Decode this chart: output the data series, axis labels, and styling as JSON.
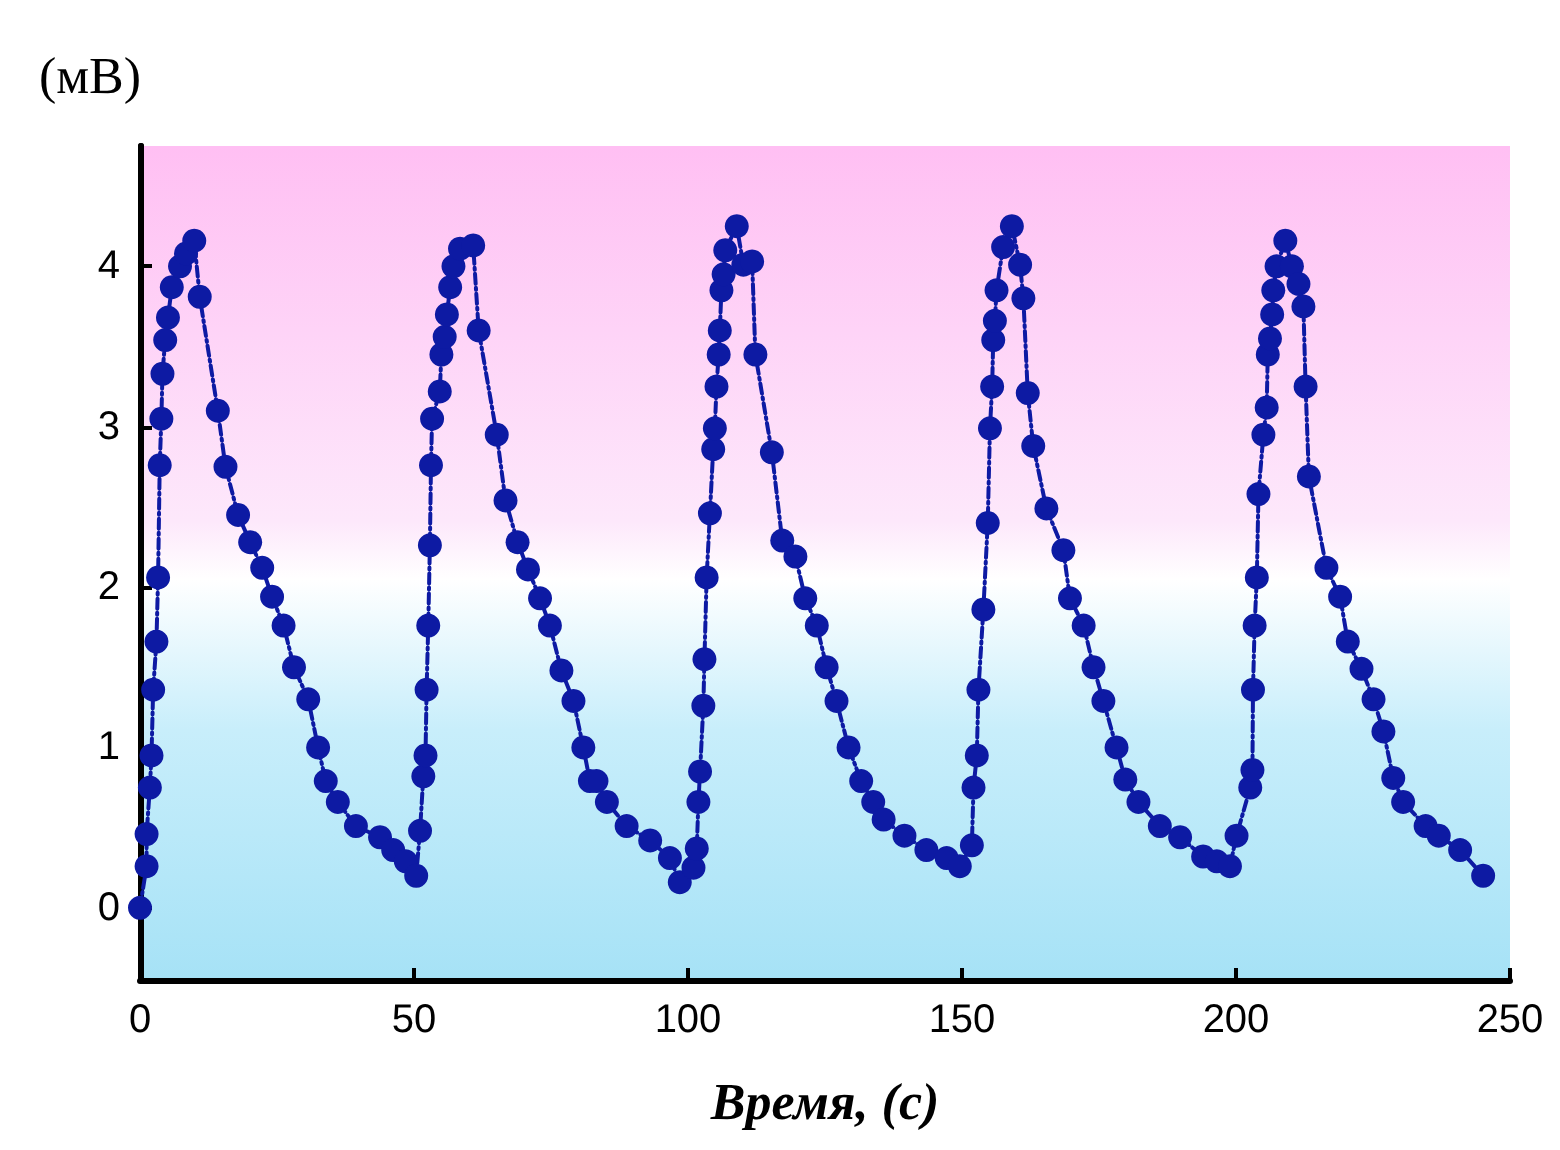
{
  "chart_data": {
    "type": "line",
    "xlabel": "Время, (с)",
    "ylabel": "(мВ)",
    "xlim": [
      0,
      250
    ],
    "ylim": [
      -0.45,
      4.75
    ],
    "xticks": [
      0,
      50,
      100,
      150,
      200,
      250
    ],
    "yticks": [
      0,
      1,
      2,
      3,
      4
    ],
    "grid": false,
    "marker": "circle",
    "line_style": "dashed",
    "series": [
      {
        "color": "#0d1aa3",
        "x": [
          0,
          1.2,
          1.2,
          1.8,
          2.1,
          2.4,
          3.0,
          3.3,
          3.6,
          3.9,
          4.1,
          4.6,
          5.1,
          5.8,
          7.3,
          8.4,
          9.9,
          10.9,
          14.2,
          15.6,
          17.9,
          20.1,
          22.3,
          24.1,
          26.2,
          28.1,
          30.7,
          32.5,
          33.9,
          36.1,
          39.4,
          43.8,
          46.2,
          48.5,
          50.4,
          51.1,
          51.7,
          52.1,
          52.3,
          52.6,
          52.9,
          53.1,
          53.3,
          54.7,
          55.0,
          55.6,
          56.0,
          56.6,
          57.2,
          58.4,
          60.8,
          61.8,
          65.1,
          66.7,
          68.9,
          70.8,
          73.0,
          74.8,
          76.9,
          79.1,
          80.9,
          82.1,
          83.3,
          85.2,
          88.8,
          93.1,
          96.7,
          98.5,
          101.0,
          101.6,
          101.9,
          102.2,
          102.8,
          103.0,
          103.4,
          104.0,
          104.6,
          104.9,
          105.2,
          105.6,
          105.8,
          106.1,
          106.5,
          106.8,
          108.9,
          110.1,
          111.7,
          112.3,
          115.3,
          117.2,
          119.6,
          121.4,
          123.5,
          125.3,
          127.1,
          129.3,
          131.6,
          133.8,
          135.7,
          139.5,
          143.5,
          147.2,
          149.6,
          151.8,
          152.1,
          152.7,
          153.0,
          153.9,
          154.7,
          155.1,
          155.5,
          155.7,
          156.0,
          156.3,
          157.5,
          159.1,
          160.6,
          161.2,
          162.0,
          163.0,
          165.4,
          168.5,
          169.7,
          172.2,
          174.0,
          175.8,
          178.2,
          179.8,
          182.2,
          186.1,
          189.8,
          194.0,
          196.5,
          198.9,
          200.1,
          202.6,
          203.0,
          203.1,
          203.4,
          203.8,
          204.1,
          205.0,
          205.6,
          205.8,
          206.2,
          206.6,
          206.8,
          207.4,
          209.0,
          210.2,
          211.4,
          212.3,
          212.7,
          213.3,
          216.5,
          219.0,
          220.4,
          222.9,
          225.1,
          226.9,
          228.7,
          230.5,
          234.6,
          237.0,
          240.9,
          245.1
        ],
        "values": [
          0,
          0.26,
          0.46,
          0.75,
          0.95,
          1.36,
          1.66,
          2.06,
          2.76,
          3.05,
          3.33,
          3.54,
          3.68,
          3.87,
          4.0,
          4.08,
          4.16,
          3.81,
          3.1,
          2.75,
          2.45,
          2.28,
          2.12,
          1.94,
          1.76,
          1.5,
          1.3,
          1.0,
          0.79,
          0.66,
          0.51,
          0.44,
          0.36,
          0.29,
          0.2,
          0.48,
          0.82,
          0.95,
          1.36,
          1.76,
          2.26,
          2.76,
          3.05,
          3.22,
          3.45,
          3.56,
          3.7,
          3.87,
          4.0,
          4.11,
          4.13,
          3.6,
          2.95,
          2.54,
          2.28,
          2.11,
          1.93,
          1.76,
          1.48,
          1.29,
          1.0,
          0.79,
          0.79,
          0.66,
          0.51,
          0.42,
          0.31,
          0.16,
          0.25,
          0.37,
          0.66,
          0.85,
          1.26,
          1.55,
          2.06,
          2.46,
          2.86,
          2.99,
          3.25,
          3.45,
          3.6,
          3.85,
          3.95,
          4.1,
          4.25,
          4.01,
          4.03,
          3.45,
          2.84,
          2.29,
          2.19,
          1.93,
          1.76,
          1.5,
          1.29,
          1.0,
          0.79,
          0.66,
          0.55,
          0.45,
          0.36,
          0.31,
          0.26,
          0.39,
          0.75,
          0.95,
          1.36,
          1.86,
          2.4,
          2.99,
          3.25,
          3.54,
          3.66,
          3.85,
          4.12,
          4.25,
          4.01,
          3.8,
          3.21,
          2.88,
          2.49,
          2.23,
          1.93,
          1.76,
          1.5,
          1.29,
          1.0,
          0.8,
          0.66,
          0.51,
          0.44,
          0.32,
          0.29,
          0.26,
          0.45,
          0.75,
          0.86,
          1.36,
          1.76,
          2.06,
          2.58,
          2.95,
          3.12,
          3.45,
          3.55,
          3.7,
          3.85,
          4.0,
          4.16,
          4.0,
          3.89,
          3.75,
          3.25,
          2.69,
          2.12,
          1.94,
          1.66,
          1.49,
          1.3,
          1.1,
          0.81,
          0.66,
          0.51,
          0.45,
          0.36,
          0.2
        ]
      }
    ]
  }
}
